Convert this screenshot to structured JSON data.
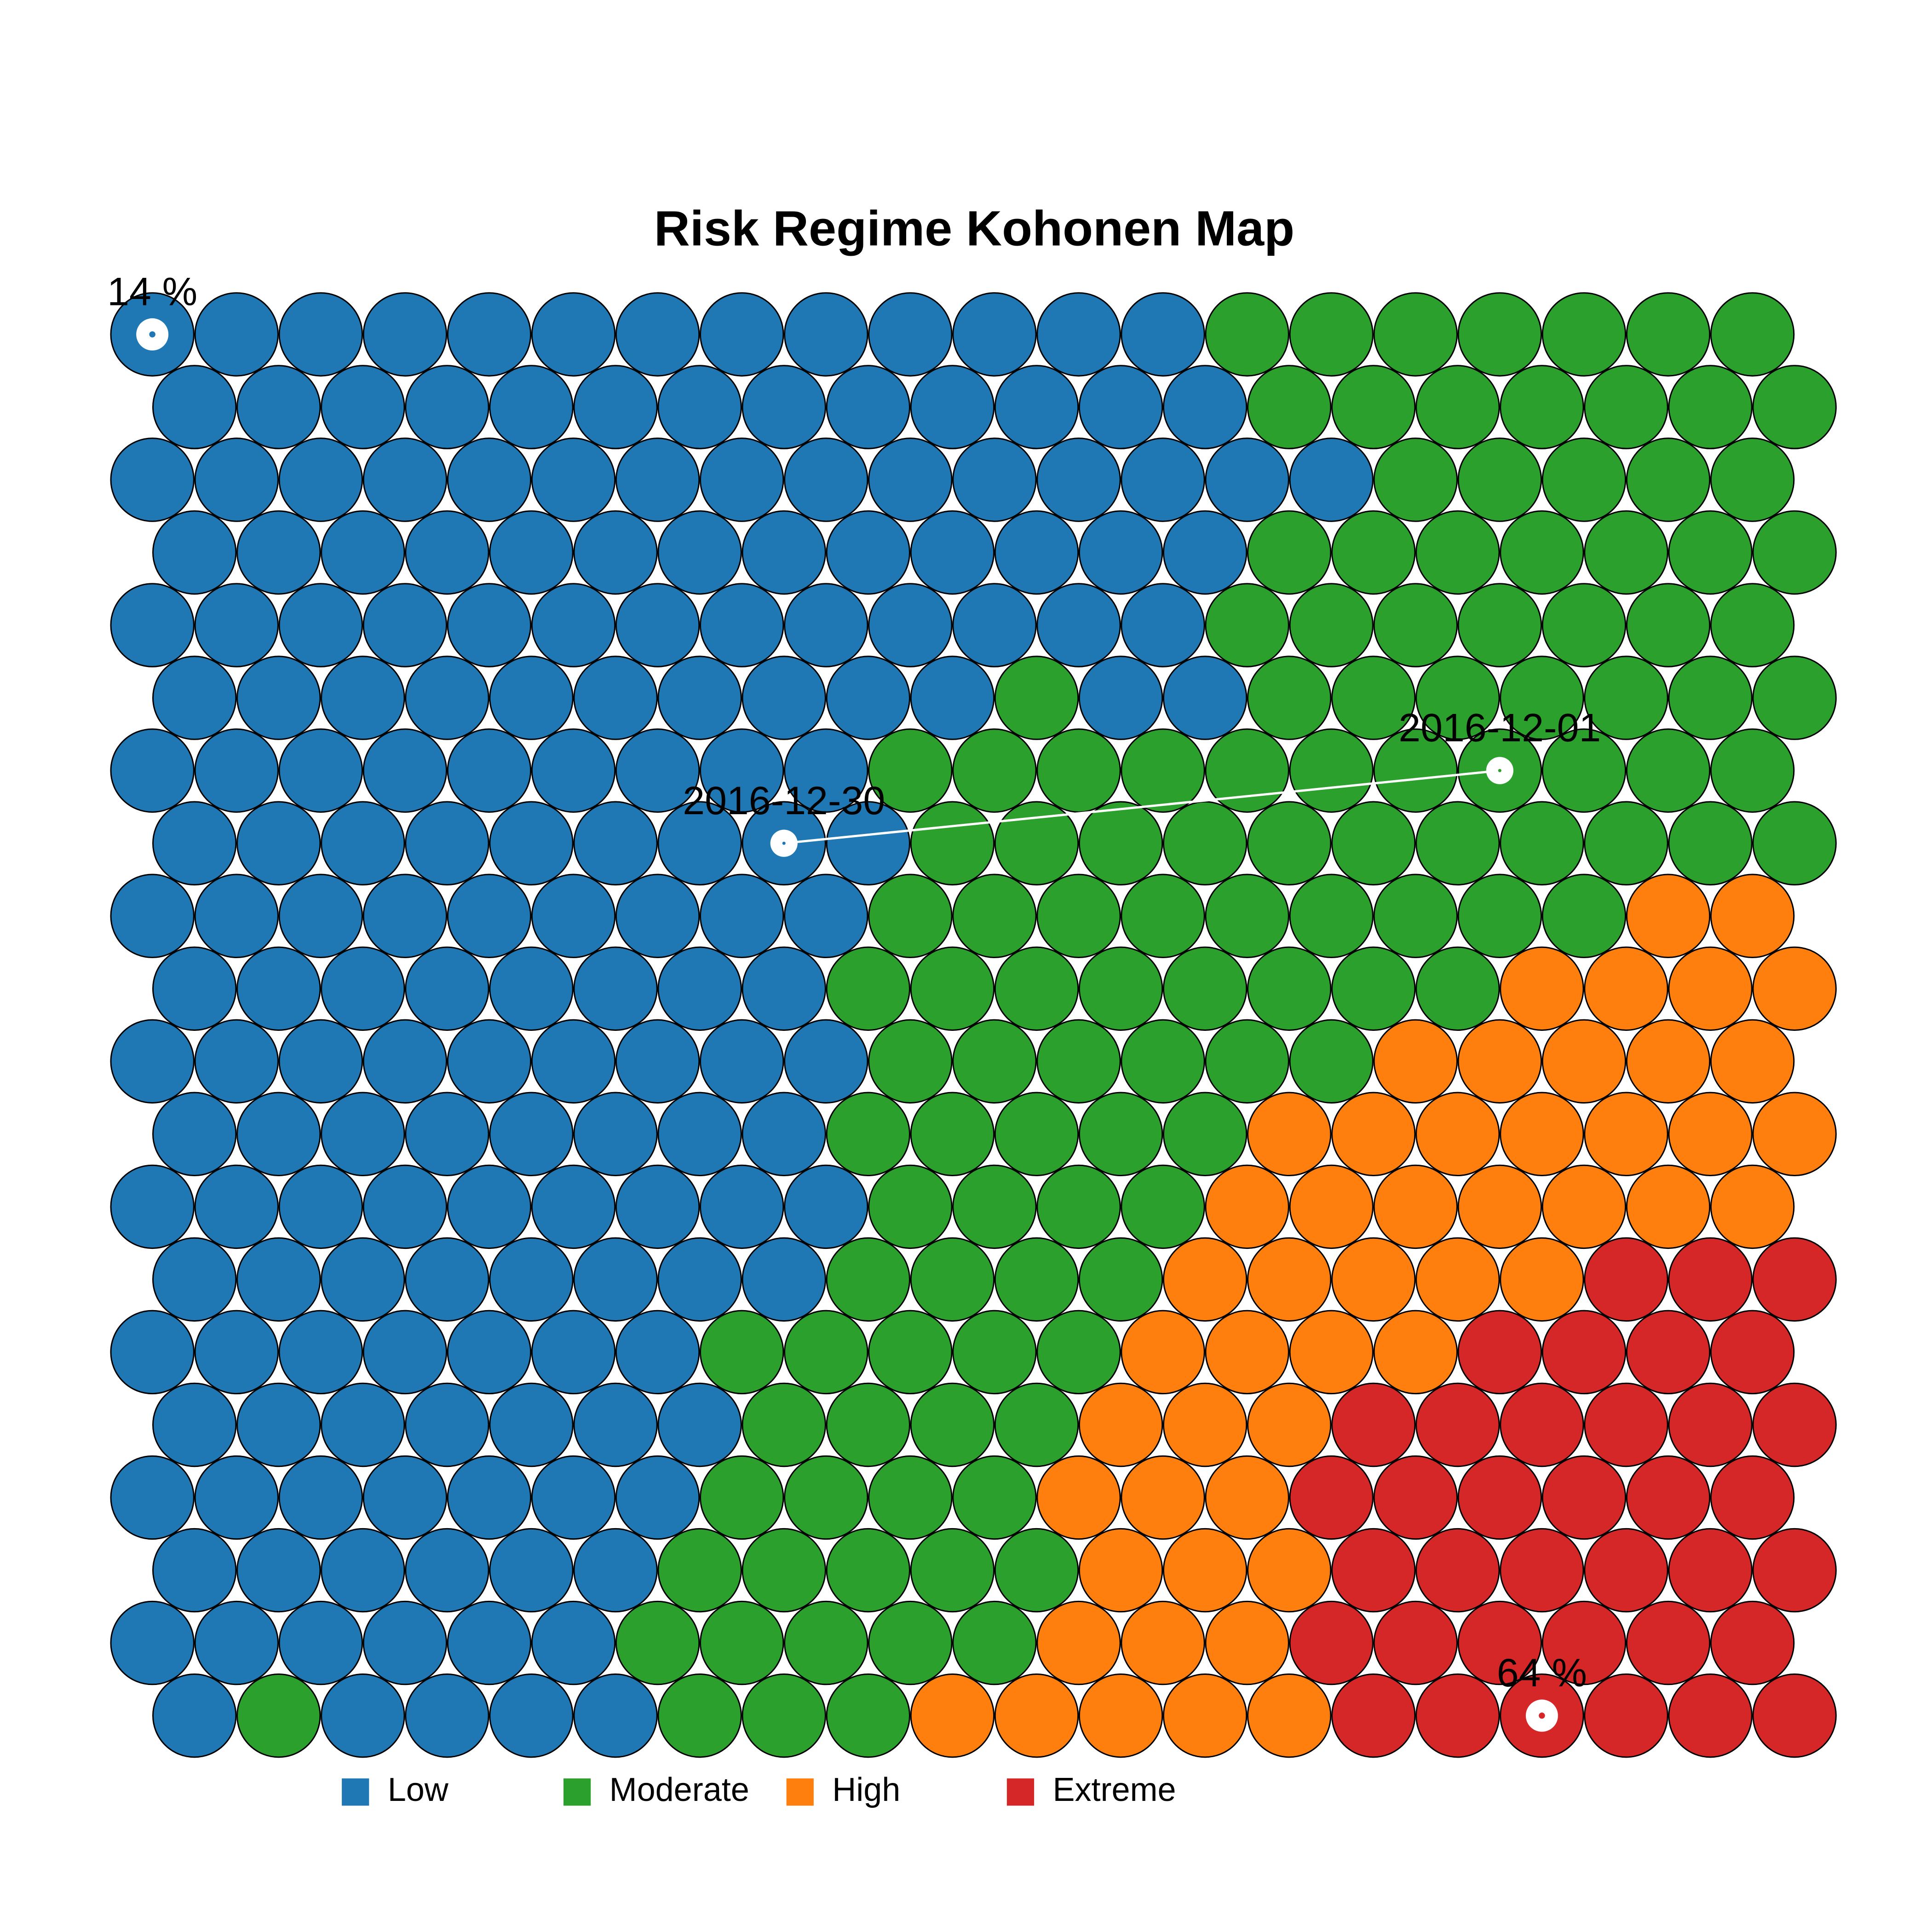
{
  "chart_data": {
    "type": "som",
    "title": "Risk Regime Kohonen Map",
    "classes": [
      {
        "name": "Low",
        "color": "#1f77b4"
      },
      {
        "name": "Moderate",
        "color": "#2ca02c"
      },
      {
        "name": "High",
        "color": "#ff7f0e"
      },
      {
        "name": "Extreme",
        "color": "#d62728"
      }
    ],
    "grid": [
      [
        0,
        0,
        0,
        0,
        0,
        0,
        0,
        0,
        0,
        0,
        0,
        0,
        0,
        1,
        1,
        1,
        1,
        1,
        1,
        1
      ],
      [
        0,
        0,
        0,
        0,
        0,
        0,
        0,
        0,
        0,
        0,
        0,
        0,
        0,
        1,
        1,
        1,
        1,
        1,
        1,
        1
      ],
      [
        0,
        0,
        0,
        0,
        0,
        0,
        0,
        0,
        0,
        0,
        0,
        0,
        0,
        0,
        0,
        1,
        1,
        1,
        1,
        1
      ],
      [
        0,
        0,
        0,
        0,
        0,
        0,
        0,
        0,
        0,
        0,
        0,
        0,
        0,
        1,
        1,
        1,
        1,
        1,
        1,
        1
      ],
      [
        0,
        0,
        0,
        0,
        0,
        0,
        0,
        0,
        0,
        0,
        0,
        0,
        0,
        1,
        1,
        1,
        1,
        1,
        1,
        1
      ],
      [
        0,
        0,
        0,
        0,
        0,
        0,
        0,
        0,
        0,
        0,
        1,
        0,
        0,
        1,
        1,
        1,
        1,
        1,
        1,
        1
      ],
      [
        0,
        0,
        0,
        0,
        0,
        0,
        0,
        0,
        0,
        1,
        1,
        1,
        1,
        1,
        1,
        1,
        1,
        1,
        1,
        1
      ],
      [
        0,
        0,
        0,
        0,
        0,
        0,
        0,
        0,
        0,
        1,
        1,
        1,
        1,
        1,
        1,
        1,
        1,
        1,
        1,
        1
      ],
      [
        0,
        0,
        0,
        0,
        0,
        0,
        0,
        0,
        0,
        1,
        1,
        1,
        1,
        1,
        1,
        1,
        1,
        1,
        2,
        2
      ],
      [
        0,
        0,
        0,
        0,
        0,
        0,
        0,
        0,
        1,
        1,
        1,
        1,
        1,
        1,
        1,
        1,
        2,
        2,
        2,
        2
      ],
      [
        0,
        0,
        0,
        0,
        0,
        0,
        0,
        0,
        0,
        1,
        1,
        1,
        1,
        1,
        1,
        2,
        2,
        2,
        2,
        2
      ],
      [
        0,
        0,
        0,
        0,
        0,
        0,
        0,
        0,
        1,
        1,
        1,
        1,
        1,
        2,
        2,
        2,
        2,
        2,
        2,
        2
      ],
      [
        0,
        0,
        0,
        0,
        0,
        0,
        0,
        0,
        0,
        1,
        1,
        1,
        1,
        2,
        2,
        2,
        2,
        2,
        2,
        2
      ],
      [
        0,
        0,
        0,
        0,
        0,
        0,
        0,
        0,
        1,
        1,
        1,
        1,
        2,
        2,
        2,
        2,
        2,
        3,
        3,
        3
      ],
      [
        0,
        0,
        0,
        0,
        0,
        0,
        0,
        1,
        1,
        1,
        1,
        1,
        2,
        2,
        2,
        2,
        3,
        3,
        3,
        3
      ],
      [
        0,
        0,
        0,
        0,
        0,
        0,
        0,
        1,
        1,
        1,
        1,
        2,
        2,
        2,
        3,
        3,
        3,
        3,
        3,
        3
      ],
      [
        0,
        0,
        0,
        0,
        0,
        0,
        0,
        1,
        1,
        1,
        1,
        2,
        2,
        2,
        3,
        3,
        3,
        3,
        3,
        3
      ],
      [
        0,
        0,
        0,
        0,
        0,
        0,
        1,
        1,
        1,
        1,
        1,
        2,
        2,
        2,
        3,
        3,
        3,
        3,
        3,
        3
      ],
      [
        0,
        0,
        0,
        0,
        0,
        0,
        1,
        1,
        1,
        1,
        1,
        2,
        2,
        2,
        3,
        3,
        3,
        3,
        3,
        3
      ],
      [
        0,
        1,
        0,
        0,
        0,
        0,
        1,
        1,
        1,
        2,
        2,
        2,
        2,
        2,
        3,
        3,
        3,
        3,
        3,
        3
      ]
    ],
    "markers": [
      {
        "label": "14 %",
        "row": 0,
        "col": 0
      },
      {
        "label": "64 %",
        "row": 19,
        "col": 16
      }
    ],
    "trajectory": [
      {
        "label": "2016-12-01",
        "row": 6,
        "col": 16
      },
      {
        "label": "2016-12-30",
        "row": 7,
        "col": 7
      }
    ]
  }
}
